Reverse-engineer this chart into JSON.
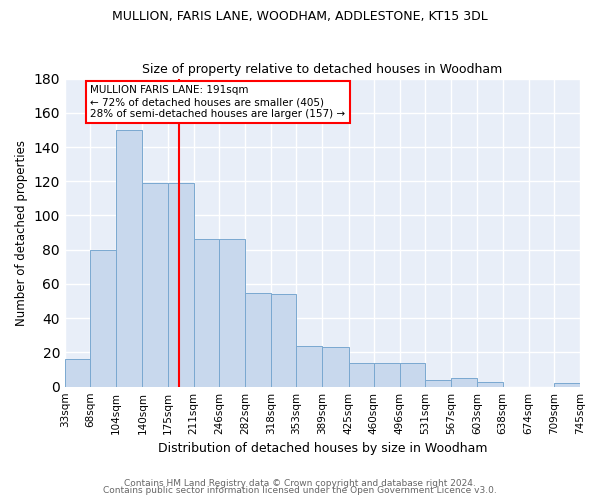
{
  "title": "MULLION, FARIS LANE, WOODHAM, ADDLESTONE, KT15 3DL",
  "subtitle": "Size of property relative to detached houses in Woodham",
  "xlabel": "Distribution of detached houses by size in Woodham",
  "ylabel": "Number of detached properties",
  "bar_color": "#c8d8ed",
  "bar_edge_color": "#7aa8d0",
  "bg_color": "#e8eef8",
  "grid_color": "white",
  "bins": [
    33,
    68,
    104,
    140,
    175,
    211,
    246,
    282,
    318,
    353,
    389,
    425,
    460,
    496,
    531,
    567,
    603,
    638,
    674,
    709,
    745
  ],
  "values": [
    16,
    80,
    150,
    119,
    119,
    86,
    86,
    55,
    54,
    24,
    23,
    14,
    14,
    14,
    4,
    5,
    3,
    0,
    0,
    2
  ],
  "tick_labels": [
    "33sqm",
    "68sqm",
    "104sqm",
    "140sqm",
    "175sqm",
    "211sqm",
    "246sqm",
    "282sqm",
    "318sqm",
    "353sqm",
    "389sqm",
    "425sqm",
    "460sqm",
    "496sqm",
    "531sqm",
    "567sqm",
    "603sqm",
    "638sqm",
    "674sqm",
    "709sqm",
    "745sqm"
  ],
  "property_size": 191,
  "annotation_line1": "MULLION FARIS LANE: 191sqm",
  "annotation_line2": "← 72% of detached houses are smaller (405)",
  "annotation_line3": "28% of semi-detached houses are larger (157) →",
  "vline_color": "red",
  "ylim": [
    0,
    180
  ],
  "footer1": "Contains HM Land Registry data © Crown copyright and database right 2024.",
  "footer2": "Contains public sector information licensed under the Open Government Licence v3.0."
}
